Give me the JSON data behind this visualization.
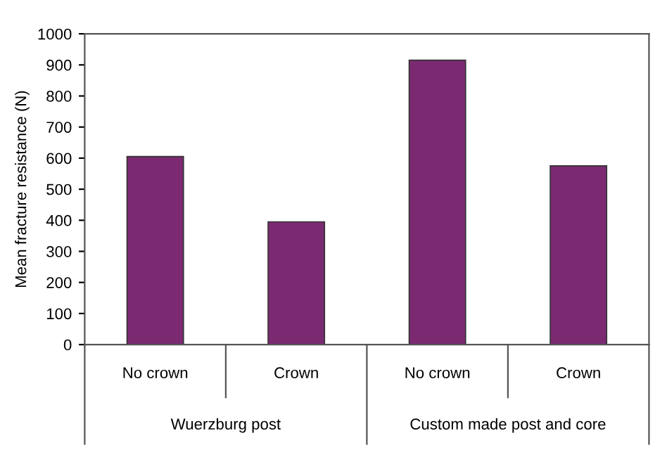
{
  "chart_data": {
    "type": "bar",
    "ylabel": "Mean fracture resistance (N)",
    "categories": [
      "No crown",
      "Crown",
      "No crown",
      "Crown"
    ],
    "values": [
      605,
      395,
      915,
      575
    ],
    "color": "#7b2a72",
    "ylim": [
      0,
      1000
    ],
    "yticks": [
      0,
      100,
      200,
      300,
      400,
      500,
      600,
      700,
      800,
      900,
      1000
    ],
    "annotations": [
      "Wuerzburg post",
      "Custom made post and core"
    ],
    "grid": false
  }
}
